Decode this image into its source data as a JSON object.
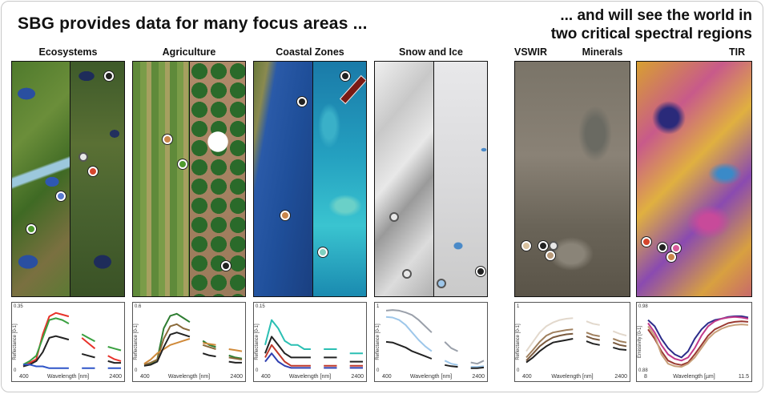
{
  "header": {
    "left_title": "SBG provides data for many focus areas ...",
    "right_line1": "... and will see the world in",
    "right_line2": "two critical spectral regions"
  },
  "panels": [
    {
      "id": "ecosystems",
      "title": "Ecosystems"
    },
    {
      "id": "agriculture",
      "title": "Agriculture"
    },
    {
      "id": "coastal",
      "title": "Coastal Zones"
    },
    {
      "id": "snow",
      "title": "Snow and Ice"
    },
    {
      "id": "vswir",
      "title": "VSWIR"
    },
    {
      "id": "minerals",
      "title": "Minerals"
    },
    {
      "id": "tir",
      "title": "TIR"
    }
  ],
  "plots": [
    {
      "id": "eco",
      "ylabel": "Reflectance [0-1]",
      "ymax": "0.35",
      "ymin": "0",
      "xlabel": "Wavelength [nm]",
      "xmin": "400",
      "xmax": "2400",
      "series": [
        {
          "color": "#e8322a",
          "y": [
            0.02,
            0.04,
            0.06,
            0.2,
            0.3,
            0.32,
            0.31,
            0.3,
            null,
            0.18,
            0.15,
            0.12,
            null,
            0.08,
            0.06,
            0.05
          ]
        },
        {
          "color": "#3aa040",
          "y": [
            0.03,
            0.05,
            0.08,
            0.18,
            0.28,
            0.29,
            0.28,
            0.26,
            null,
            0.2,
            0.18,
            0.16,
            null,
            0.13,
            0.12,
            0.11
          ]
        },
        {
          "color": "#222222",
          "y": [
            0.02,
            0.03,
            0.05,
            0.1,
            0.18,
            0.19,
            0.18,
            0.17,
            null,
            0.09,
            0.08,
            0.07,
            null,
            0.05,
            0.04,
            0.04
          ]
        },
        {
          "color": "#2f55c8",
          "y": [
            0.03,
            0.03,
            0.02,
            0.02,
            0.01,
            0.01,
            0.01,
            0.01,
            null,
            0.01,
            0.01,
            0.01,
            null,
            0.01,
            0.01,
            0.01
          ]
        }
      ]
    },
    {
      "id": "agri",
      "ylabel": "Reflectance [0-1]",
      "ymax": "0.6",
      "ymin": "0",
      "xlabel": "Wavelength [nm]",
      "xmin": "400",
      "xmax": "2400",
      "series": [
        {
          "color": "#2e7d32",
          "y": [
            0.04,
            0.06,
            0.1,
            0.4,
            0.52,
            0.54,
            0.5,
            0.46,
            null,
            0.28,
            0.24,
            0.22,
            null,
            0.14,
            0.12,
            0.11
          ]
        },
        {
          "color": "#8a6a3a",
          "y": [
            0.05,
            0.07,
            0.1,
            0.3,
            0.42,
            0.44,
            0.4,
            0.38,
            null,
            0.24,
            0.22,
            0.2,
            null,
            0.12,
            0.11,
            0.1
          ]
        },
        {
          "color": "#d08a3a",
          "y": [
            0.06,
            0.1,
            0.16,
            0.2,
            0.24,
            0.26,
            0.28,
            0.3,
            null,
            0.26,
            0.25,
            0.24,
            null,
            0.2,
            0.19,
            0.18
          ]
        },
        {
          "color": "#222222",
          "y": [
            0.04,
            0.05,
            0.08,
            0.22,
            0.34,
            0.36,
            0.34,
            0.32,
            null,
            0.16,
            0.14,
            0.13,
            null,
            0.08,
            0.07,
            0.07
          ]
        }
      ]
    },
    {
      "id": "coastal",
      "ylabel": "Reflectance [0-1]",
      "ymax": "0.15",
      "ymin": "0",
      "xlabel": "Wavelength [nm]",
      "xmin": "400",
      "xmax": "2400",
      "series": [
        {
          "color": "#2bbfb3",
          "y": [
            0.06,
            0.12,
            0.1,
            0.07,
            0.06,
            0.06,
            0.05,
            0.05,
            null,
            0.05,
            0.05,
            0.05,
            null,
            0.04,
            0.04,
            0.04
          ]
        },
        {
          "color": "#222222",
          "y": [
            0.04,
            0.08,
            0.06,
            0.04,
            0.03,
            0.03,
            0.03,
            0.03,
            null,
            0.03,
            0.03,
            0.03,
            null,
            0.02,
            0.02,
            0.02
          ]
        },
        {
          "color": "#c0392b",
          "y": [
            0.03,
            0.06,
            0.04,
            0.02,
            0.01,
            0.01,
            0.01,
            0.01,
            null,
            0.01,
            0.01,
            0.01,
            null,
            0.01,
            0.01,
            0.01
          ]
        },
        {
          "color": "#2f3fb0",
          "y": [
            0.02,
            0.04,
            0.02,
            0.01,
            0.005,
            0.005,
            0.005,
            0.005,
            null,
            0.005,
            0.005,
            0.005,
            null,
            0.005,
            0.005,
            0.005
          ]
        }
      ]
    },
    {
      "id": "snow",
      "ylabel": "Reflectance [0-1]",
      "ymax": "1",
      "ymin": "0",
      "xlabel": "Wavelength [nm]",
      "xmin": "400",
      "xmax": "2400",
      "series": [
        {
          "color": "#9aa0aa",
          "y": [
            0.95,
            0.96,
            0.95,
            0.92,
            0.88,
            0.8,
            0.7,
            0.6,
            null,
            0.45,
            0.35,
            0.3,
            null,
            0.12,
            0.1,
            0.15
          ]
        },
        {
          "color": "#9ec7ea",
          "y": [
            0.85,
            0.84,
            0.8,
            0.72,
            0.6,
            0.48,
            0.38,
            0.3,
            null,
            0.15,
            0.1,
            0.08,
            null,
            0.05,
            0.05,
            0.06
          ]
        },
        {
          "color": "#222222",
          "y": [
            0.45,
            0.44,
            0.4,
            0.36,
            0.3,
            0.26,
            0.22,
            0.18,
            null,
            0.08,
            0.06,
            0.05,
            null,
            0.03,
            0.03,
            0.04
          ]
        }
      ]
    },
    {
      "id": "vswir",
      "ylabel": "Reflectance [0-1]",
      "ymax": "1",
      "ymin": "0",
      "xlabel": "Wavelength [nm]",
      "xmin": "400",
      "xmax": "2400",
      "series": [
        {
          "color": "#e2d8cc",
          "y": [
            0.3,
            0.45,
            0.6,
            0.7,
            0.76,
            0.8,
            0.82,
            0.83,
            null,
            0.78,
            0.74,
            0.72,
            null,
            0.62,
            0.58,
            0.55
          ]
        },
        {
          "color": "#a0805e",
          "y": [
            0.2,
            0.32,
            0.45,
            0.55,
            0.6,
            0.62,
            0.64,
            0.65,
            null,
            0.6,
            0.56,
            0.54,
            null,
            0.5,
            0.46,
            0.44
          ]
        },
        {
          "color": "#7a5a3e",
          "y": [
            0.15,
            0.26,
            0.38,
            0.46,
            0.52,
            0.55,
            0.57,
            0.58,
            null,
            0.54,
            0.5,
            0.48,
            null,
            0.44,
            0.4,
            0.38
          ]
        },
        {
          "color": "#222222",
          "y": [
            0.12,
            0.2,
            0.3,
            0.38,
            0.44,
            0.46,
            0.48,
            0.5,
            null,
            0.46,
            0.42,
            0.4,
            null,
            0.36,
            0.33,
            0.32
          ]
        }
      ]
    },
    {
      "id": "tir",
      "ylabel": "Emissivity [0-1]",
      "ymax": "0.98",
      "ymin": "0.88",
      "xlabel": "Wavelength [µm]",
      "xmin": "8",
      "xmax": "11.5",
      "series": [
        {
          "color": "#2c2c8a",
          "y": [
            0.96,
            0.95,
            0.93,
            0.915,
            0.905,
            0.9,
            0.91,
            0.93,
            0.945,
            0.955,
            0.96,
            0.962,
            0.965,
            0.966,
            0.966,
            0.964
          ]
        },
        {
          "color": "#c23a8a",
          "y": [
            0.955,
            0.94,
            0.92,
            0.905,
            0.898,
            0.895,
            0.9,
            0.915,
            0.935,
            0.95,
            0.958,
            0.962,
            0.964,
            0.965,
            0.964,
            0.962
          ]
        },
        {
          "color": "#9a3a32",
          "y": [
            0.945,
            0.93,
            0.91,
            0.895,
            0.89,
            0.888,
            0.892,
            0.905,
            0.92,
            0.935,
            0.945,
            0.95,
            0.955,
            0.957,
            0.958,
            0.957
          ]
        },
        {
          "color": "#c8a07a",
          "y": [
            0.95,
            0.935,
            0.905,
            0.89,
            0.886,
            0.885,
            0.89,
            0.9,
            0.915,
            0.93,
            0.94,
            0.946,
            0.95,
            0.952,
            0.953,
            0.952
          ]
        }
      ]
    }
  ],
  "colors": {
    "frame_border": "#c8c8c8",
    "panel_border": "#111111"
  }
}
